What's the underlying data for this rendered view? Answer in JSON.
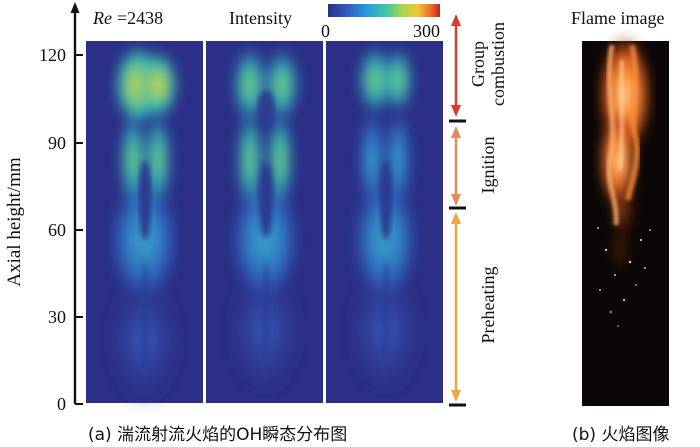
{
  "header": {
    "re_symbol": "Re",
    "re_value": "=2438",
    "intensity_label": "Intensity",
    "colorbar_min": "0",
    "colorbar_max": "300",
    "flame_title": "Flame image"
  },
  "axis": {
    "ylabel": "Axial height/mm",
    "ticks": [
      "0",
      "30",
      "60",
      "90",
      "120"
    ]
  },
  "stages": [
    {
      "label_lines": [
        "Group",
        "combustion"
      ],
      "from_mm": 90,
      "to_mm": 120,
      "color": "#e03a2e"
    },
    {
      "label_lines": [
        "Ignition"
      ],
      "from_mm": 65,
      "to_mm": 90,
      "color": "#e88a55"
    },
    {
      "label_lines": [
        "Preheating"
      ],
      "from_mm": 0,
      "to_mm": 65,
      "color": "#f0a640"
    }
  ],
  "captions": {
    "a": "(a) 湍流射流火焰的OH瞬态分布图",
    "b": "(b) 火焰图像"
  },
  "colors": {
    "field_background": "#2b2f86",
    "colormap": [
      "#2a2f86",
      "#2f5fc4",
      "#2aa0d8",
      "#3fc6a6",
      "#a6d84a",
      "#f2c53a",
      "#ec6a2a",
      "#c81e1e"
    ]
  }
}
